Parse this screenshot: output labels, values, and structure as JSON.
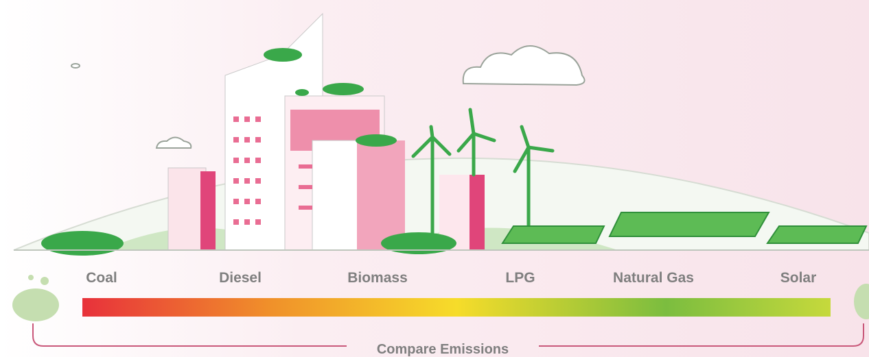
{
  "scale": {
    "labels": [
      "Coal",
      "Diesel",
      "Biomass",
      "LPG",
      "Natural Gas",
      "Solar"
    ]
  },
  "caption": "Compare Emissions"
}
